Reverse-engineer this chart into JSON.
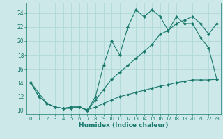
{
  "line1_x": [
    0,
    1,
    2,
    3,
    4,
    5,
    6,
    7,
    8,
    9,
    10,
    11,
    12,
    13,
    14,
    15,
    16,
    17,
    18,
    19,
    20,
    21,
    22,
    23
  ],
  "line1_y": [
    14,
    12,
    11,
    10.5,
    10.3,
    10.5,
    10.5,
    10,
    12,
    16.5,
    20,
    18,
    22,
    24.5,
    23.5,
    24.5,
    23.5,
    21.5,
    23.5,
    22.5,
    22.5,
    20.5,
    19,
    14.5
  ],
  "line2_x": [
    0,
    2,
    3,
    4,
    5,
    6,
    7,
    8,
    9,
    10,
    11,
    12,
    13,
    14,
    15,
    16,
    17,
    18,
    19,
    20,
    21,
    22,
    23
  ],
  "line2_y": [
    14,
    11,
    10.5,
    10.3,
    10.5,
    10.5,
    10,
    11.5,
    13,
    14.5,
    15.5,
    16.5,
    17.5,
    18.5,
    19.5,
    21,
    21.5,
    22.5,
    23,
    23.5,
    22.5,
    21,
    22.5
  ],
  "line3_x": [
    0,
    1,
    2,
    3,
    4,
    5,
    6,
    7,
    8,
    9,
    10,
    11,
    12,
    13,
    14,
    15,
    16,
    17,
    18,
    19,
    20,
    21,
    22,
    23
  ],
  "line3_y": [
    14,
    12,
    11,
    10.5,
    10.3,
    10.3,
    10.5,
    10.1,
    10.5,
    11.0,
    11.5,
    12.0,
    12.3,
    12.6,
    12.9,
    13.2,
    13.5,
    13.7,
    14.0,
    14.2,
    14.4,
    14.4,
    14.4,
    14.5
  ],
  "line_color": "#1a7a6e",
  "bg_color": "#cce8e8",
  "grid_color": "#b0d8d8",
  "xlabel": "Humidex (Indice chaleur)",
  "xlim": [
    -0.5,
    23.5
  ],
  "ylim": [
    9.5,
    25.5
  ],
  "yticks": [
    10,
    12,
    14,
    16,
    18,
    20,
    22,
    24
  ],
  "xticks": [
    0,
    1,
    2,
    3,
    4,
    5,
    6,
    7,
    8,
    9,
    10,
    11,
    12,
    13,
    14,
    15,
    16,
    17,
    18,
    19,
    20,
    21,
    22,
    23
  ],
  "marker": "D",
  "markersize": 2.0,
  "linewidth": 0.8,
  "tick_fontsize": 5.5,
  "xlabel_fontsize": 6.5
}
